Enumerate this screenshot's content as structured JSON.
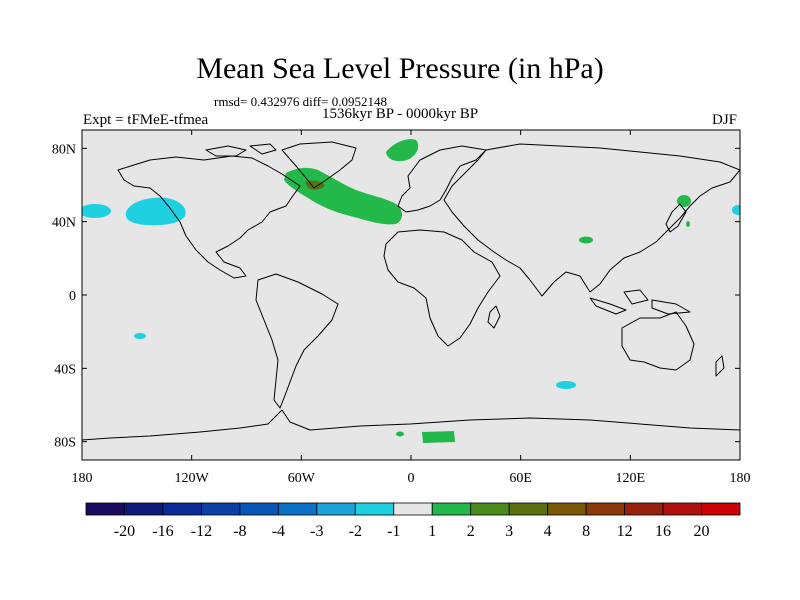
{
  "title": "Mean Sea Level Pressure (in hPa)",
  "stats_text": "rmsd= 0.432976 diff= 0.0952148",
  "left_label": "Expt = tFMeE-tfmea",
  "period_label": "1536kyr BP - 0000kyr BP",
  "season_label": "DJF",
  "axes": {
    "x_ticks": [
      "180",
      "120W",
      "60W",
      "0",
      "60E",
      "120E",
      "180"
    ],
    "y_ticks": [
      "80N",
      "40N",
      "0",
      "40S",
      "80S"
    ],
    "lon_range": [
      -180,
      180
    ],
    "lat_range": [
      -90,
      90
    ]
  },
  "colorbar": {
    "labels": [
      "-20",
      "-16",
      "-12",
      "-8",
      "-4",
      "-3",
      "-2",
      "-1",
      "1",
      "2",
      "3",
      "4",
      "8",
      "12",
      "16",
      "20"
    ],
    "colors": [
      "#1a0a5e",
      "#0d1a7a",
      "#0a2a96",
      "#0a3fa8",
      "#0a55b8",
      "#0a72c8",
      "#19a3d8",
      "#1fd0e0",
      "#e6e6e6",
      "#22b84a",
      "#4a8a1e",
      "#5a7010",
      "#7a5808",
      "#8a3a0a",
      "#9a200e",
      "#b0100e",
      "#cc0000"
    ]
  },
  "colors": {
    "land_ocean_fill": "#e6e6e6",
    "negative_anomaly": "#1fd0e0",
    "positive_anomaly": "#22b84a",
    "strong_positive": "#5a7010"
  },
  "anomaly_regions": [
    {
      "name": "north-atlantic-positive",
      "value_class": "1 to 2"
    },
    {
      "name": "arctic-positive",
      "value_class": "1 to 2"
    },
    {
      "name": "north-pacific-negative",
      "value_class": "-1 to -2"
    },
    {
      "name": "antarctic-positive",
      "value_class": "1 to 2"
    }
  ]
}
